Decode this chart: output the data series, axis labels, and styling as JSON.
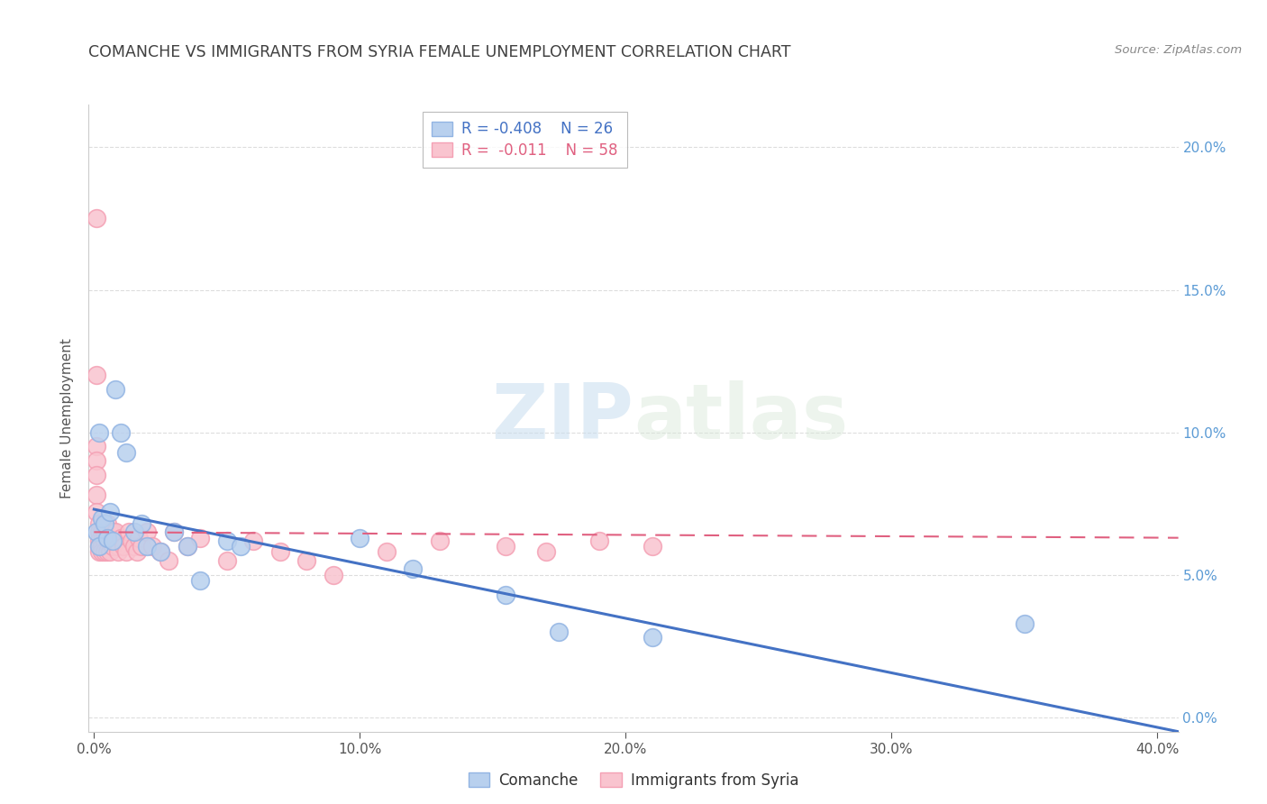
{
  "title": "COMANCHE VS IMMIGRANTS FROM SYRIA FEMALE UNEMPLOYMENT CORRELATION CHART",
  "source": "Source: ZipAtlas.com",
  "ylabel": "Female Unemployment",
  "xlabel_ticks": [
    "0.0%",
    "10.0%",
    "20.0%",
    "30.0%",
    "40.0%"
  ],
  "xlabel_vals": [
    0.0,
    0.1,
    0.2,
    0.3,
    0.4
  ],
  "ylabel_ticks_right": [
    "20.0%",
    "15.0%",
    "10.0%",
    "5.0%",
    "0.0%"
  ],
  "ylabel_vals_right": [
    0.2,
    0.15,
    0.1,
    0.05,
    0.0
  ],
  "xlim": [
    -0.002,
    0.408
  ],
  "ylim": [
    -0.005,
    0.215
  ],
  "legend_blue_label": "Comanche",
  "legend_pink_label": "Immigrants from Syria",
  "legend_blue_R_text": "R = -0.408",
  "legend_blue_N_text": "N = 26",
  "legend_pink_R_text": "R =  -0.011",
  "legend_pink_N_text": "N = 58",
  "watermark_zip": "ZIP",
  "watermark_atlas": "atlas",
  "blue_fill_color": "#B8D0EE",
  "pink_fill_color": "#F9C4CF",
  "blue_edge_color": "#92B4E3",
  "pink_edge_color": "#F4A0B4",
  "blue_line_color": "#4472C4",
  "pink_line_color": "#E06080",
  "title_color": "#404040",
  "source_color": "#888888",
  "axis_label_color": "#555555",
  "right_tick_color": "#5B9BD5",
  "grid_color": "#DDDDDD",
  "comanche_x": [
    0.001,
    0.002,
    0.002,
    0.003,
    0.004,
    0.005,
    0.006,
    0.007,
    0.008,
    0.01,
    0.012,
    0.015,
    0.018,
    0.02,
    0.025,
    0.03,
    0.035,
    0.04,
    0.05,
    0.055,
    0.1,
    0.12,
    0.155,
    0.175,
    0.21,
    0.35
  ],
  "comanche_y": [
    0.065,
    0.06,
    0.1,
    0.07,
    0.068,
    0.063,
    0.072,
    0.062,
    0.115,
    0.1,
    0.093,
    0.065,
    0.068,
    0.06,
    0.058,
    0.065,
    0.06,
    0.048,
    0.062,
    0.06,
    0.063,
    0.052,
    0.043,
    0.03,
    0.028,
    0.033
  ],
  "syria_x": [
    0.001,
    0.001,
    0.001,
    0.001,
    0.001,
    0.001,
    0.001,
    0.002,
    0.002,
    0.002,
    0.002,
    0.002,
    0.003,
    0.003,
    0.003,
    0.003,
    0.004,
    0.004,
    0.004,
    0.005,
    0.005,
    0.005,
    0.006,
    0.006,
    0.006,
    0.007,
    0.007,
    0.008,
    0.008,
    0.009,
    0.009,
    0.01,
    0.011,
    0.012,
    0.013,
    0.014,
    0.015,
    0.016,
    0.017,
    0.018,
    0.02,
    0.022,
    0.025,
    0.028,
    0.03,
    0.035,
    0.04,
    0.05,
    0.06,
    0.07,
    0.08,
    0.09,
    0.11,
    0.13,
    0.155,
    0.17,
    0.19,
    0.21
  ],
  "syria_y": [
    0.175,
    0.12,
    0.095,
    0.09,
    0.085,
    0.078,
    0.072,
    0.068,
    0.065,
    0.062,
    0.06,
    0.058,
    0.065,
    0.062,
    0.06,
    0.058,
    0.065,
    0.062,
    0.058,
    0.068,
    0.063,
    0.058,
    0.065,
    0.062,
    0.058,
    0.065,
    0.06,
    0.065,
    0.062,
    0.06,
    0.058,
    0.063,
    0.06,
    0.058,
    0.065,
    0.062,
    0.06,
    0.058,
    0.063,
    0.06,
    0.065,
    0.06,
    0.058,
    0.055,
    0.065,
    0.06,
    0.063,
    0.055,
    0.062,
    0.058,
    0.055,
    0.05,
    0.058,
    0.062,
    0.06,
    0.058,
    0.062,
    0.06
  ],
  "blue_line_x": [
    0.0,
    0.408
  ],
  "blue_line_y": [
    0.073,
    -0.005
  ],
  "pink_line_x": [
    0.0,
    0.408
  ],
  "pink_line_y": [
    0.065,
    0.063
  ]
}
